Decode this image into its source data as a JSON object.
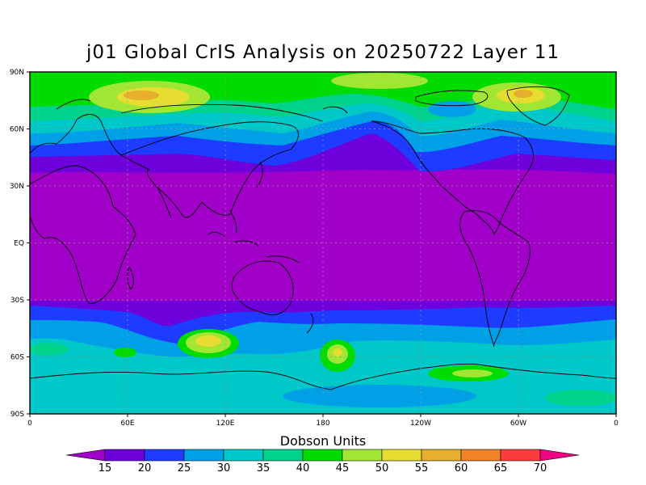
{
  "title": "j01 Global CrIS Analysis on 20250722 Layer 11",
  "lat_labels": [
    "90N",
    "60N",
    "30N",
    "EQ",
    "30S",
    "60S",
    "90S"
  ],
  "lon_labels": [
    "0",
    "60E",
    "120E",
    "180",
    "120W",
    "60W",
    "0"
  ],
  "colorbar": {
    "title": "Dobson Units",
    "ticks": [
      "15",
      "20",
      "25",
      "30",
      "35",
      "40",
      "45",
      "50",
      "55",
      "60",
      "65",
      "70"
    ],
    "colors": [
      "#a000c8",
      "#6e00dc",
      "#1e3cff",
      "#00a0e6",
      "#00c8c8",
      "#00d28c",
      "#00dc00",
      "#a0e632",
      "#e6dc32",
      "#e6af2d",
      "#f08228",
      "#fa3c3c",
      "#f00082"
    ]
  }
}
